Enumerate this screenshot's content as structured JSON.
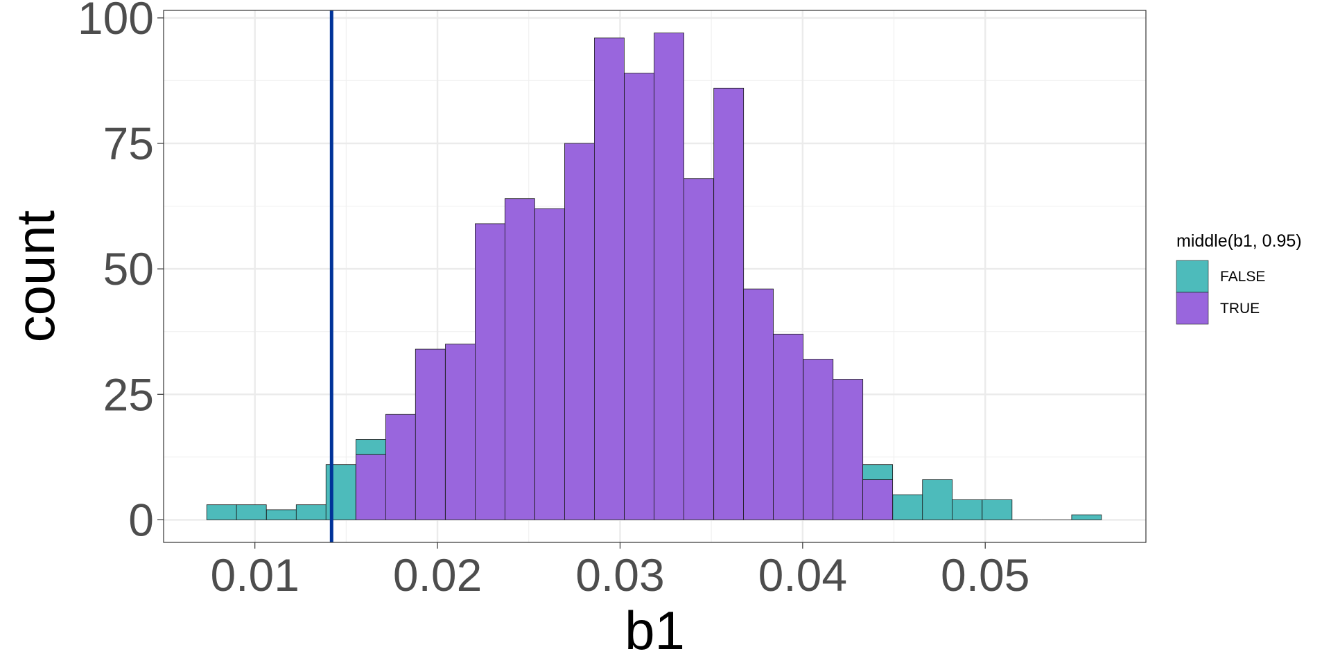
{
  "chart_data": {
    "type": "bar",
    "subtype": "stacked-histogram",
    "title": "",
    "xlabel": "b1",
    "ylabel": "count",
    "xlim": [
      0.005,
      0.0588
    ],
    "ylim": [
      -4.5,
      101.5
    ],
    "x_ticks": [
      0.01,
      0.02,
      0.03,
      0.04,
      0.05
    ],
    "x_tick_labels": [
      "0.01",
      "0.02",
      "0.03",
      "0.04",
      "0.05"
    ],
    "y_ticks": [
      0,
      25,
      50,
      75,
      100
    ],
    "y_tick_labels": [
      "0",
      "25",
      "50",
      "75",
      "100"
    ],
    "grid": true,
    "bin_width": 0.001633,
    "bin_centers": [
      0.00818,
      0.00981,
      0.01145,
      0.01308,
      0.01471,
      0.01635,
      0.01798,
      0.01961,
      0.02125,
      0.02288,
      0.02451,
      0.02615,
      0.02778,
      0.02941,
      0.03105,
      0.03268,
      0.03431,
      0.03595,
      0.03758,
      0.03921,
      0.04085,
      0.04248,
      0.04411,
      0.04575,
      0.04738,
      0.04901,
      0.05065,
      0.05228,
      0.05391,
      0.05555
    ],
    "series": [
      {
        "name": "TRUE",
        "color": "#9966dd",
        "values": [
          0,
          0,
          0,
          0,
          0,
          13,
          21,
          34,
          35,
          59,
          64,
          62,
          75,
          96,
          89,
          97,
          68,
          86,
          46,
          37,
          32,
          28,
          8,
          0,
          0,
          0,
          0,
          0,
          0,
          0
        ]
      },
      {
        "name": "FALSE",
        "color": "#4dbbbb",
        "values": [
          3,
          3,
          2,
          3,
          11,
          3,
          0,
          0,
          0,
          0,
          0,
          0,
          0,
          0,
          0,
          0,
          0,
          0,
          0,
          0,
          0,
          0,
          3,
          5,
          8,
          4,
          4,
          0,
          0,
          1
        ]
      }
    ],
    "vline": {
      "x": 0.0142,
      "color": "#003399"
    },
    "legend": {
      "title": "middle(b1, 0.95)",
      "position": "right",
      "items": [
        {
          "label": "FALSE",
          "color": "#4dbbbb"
        },
        {
          "label": "TRUE",
          "color": "#9966dd"
        }
      ]
    }
  }
}
